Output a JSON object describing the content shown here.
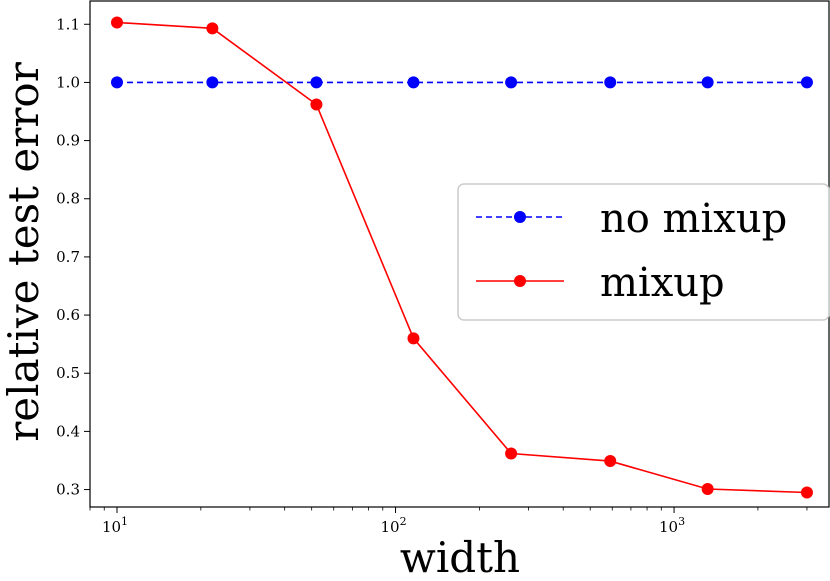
{
  "chart_data": {
    "type": "line",
    "xlabel": "width",
    "ylabel": "relative test error",
    "xscale": "log",
    "xlim": [
      8,
      3600
    ],
    "ylim": [
      0.27,
      1.14
    ],
    "yticks": [
      0.3,
      0.4,
      0.5,
      0.6,
      0.7,
      0.8,
      0.9,
      1.0,
      1.1
    ],
    "ytick_labels": [
      "0.3",
      "0.4",
      "0.5",
      "0.6",
      "0.7",
      "0.8",
      "0.9",
      "1.0",
      "1.1"
    ],
    "xticks": [
      {
        "base": "10",
        "exp": "1",
        "value": 10
      },
      {
        "base": "10",
        "exp": "2",
        "value": 100
      },
      {
        "base": "10",
        "exp": "3",
        "value": 1000
      }
    ],
    "x": [
      10,
      22,
      52,
      116,
      260,
      590,
      1320,
      3000
    ],
    "series": [
      {
        "name": "no mixup",
        "color": "#0000ff",
        "style": "dashed",
        "marker": "circle",
        "values": [
          1.0,
          1.0,
          1.0,
          1.0,
          1.0,
          1.0,
          1.0,
          1.0
        ]
      },
      {
        "name": "mixup",
        "color": "#ff0000",
        "style": "solid",
        "marker": "circle",
        "values": [
          1.103,
          1.093,
          0.962,
          0.56,
          0.362,
          0.349,
          0.301,
          0.295
        ]
      }
    ],
    "legend": {
      "position": "center-right"
    },
    "grid": false
  }
}
